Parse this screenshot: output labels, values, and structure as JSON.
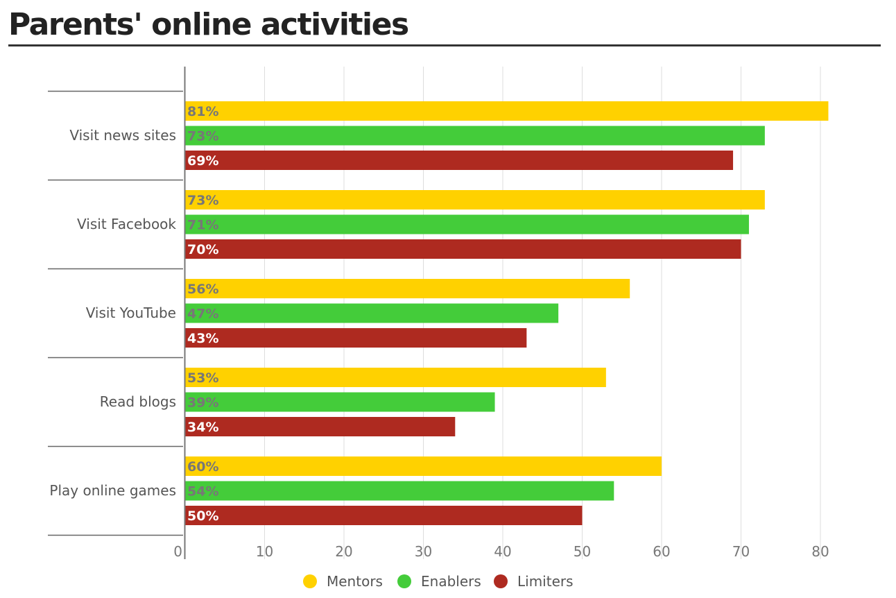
{
  "chart_data": {
    "type": "bar",
    "orientation": "horizontal",
    "title": "Parents' online activities",
    "categories": [
      "Visit news sites",
      "Visit Facebook",
      "Visit YouTube",
      "Read blogs",
      "Play online games"
    ],
    "series": [
      {
        "name": "Mentors",
        "color": "#FFD100",
        "label_color": "#777777",
        "values": [
          81,
          73,
          56,
          53,
          60
        ],
        "labels": [
          "81%",
          "73%",
          "56%",
          "53%",
          "60%"
        ]
      },
      {
        "name": "Enablers",
        "color": "#44CC3A",
        "label_color": "#777777",
        "values": [
          73,
          71,
          47,
          39,
          54
        ],
        "labels": [
          "73%",
          "71%",
          "47%",
          "39%",
          "54%"
        ]
      },
      {
        "name": "Limiters",
        "color": "#AE2A20",
        "label_color": "#FFFFFF",
        "values": [
          69,
          70,
          43,
          34,
          50
        ],
        "labels": [
          "69%",
          "70%",
          "43%",
          "34%",
          "50%"
        ]
      }
    ],
    "xticks": [
      0,
      10,
      20,
      30,
      40,
      50,
      60,
      70,
      80
    ],
    "xlim": [
      0,
      80
    ],
    "grid": true,
    "legend_position": "bottom-center"
  }
}
